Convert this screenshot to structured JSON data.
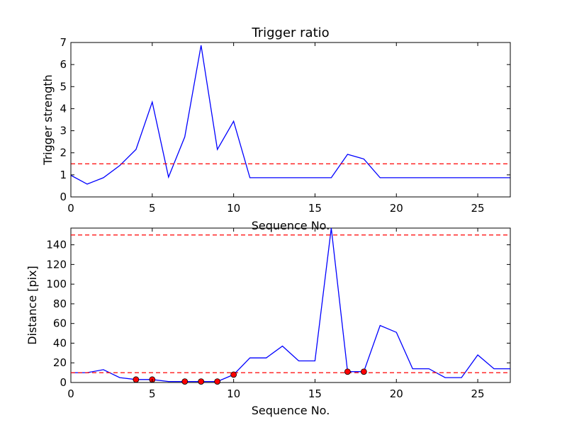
{
  "chart_data": [
    {
      "type": "line",
      "title": "Trigger ratio",
      "xlabel": "Sequence No.",
      "ylabel": "Trigger strength",
      "xlim": [
        0,
        27
      ],
      "ylim": [
        0,
        7
      ],
      "xticks": [
        "0",
        "5",
        "10",
        "15",
        "20",
        "25"
      ],
      "yticks": [
        "0",
        "1",
        "2",
        "3",
        "4",
        "5",
        "6",
        "7"
      ],
      "grid": false,
      "series": [
        {
          "color": "#0000ff",
          "x": [
            0,
            1,
            2,
            3,
            4,
            5,
            6,
            7,
            8,
            9,
            10,
            11,
            12,
            13,
            14,
            15,
            16,
            17,
            18,
            19,
            20,
            21,
            22,
            23,
            24,
            25,
            26,
            27
          ],
          "y": [
            0.98,
            0.58,
            0.87,
            1.42,
            2.15,
            4.3,
            0.9,
            2.72,
            6.87,
            2.15,
            3.43,
            0.87,
            0.87,
            0.87,
            0.87,
            0.87,
            0.87,
            1.93,
            1.72,
            0.87,
            0.87,
            0.87,
            0.87,
            0.87,
            0.87,
            0.87,
            0.87,
            0.87
          ]
        }
      ],
      "thresholds": [
        {
          "y": 1.5,
          "color": "#ff0000",
          "style": "dashed"
        }
      ]
    },
    {
      "type": "line",
      "title": "",
      "xlabel": "Sequence No.",
      "ylabel": "Distance [pix]",
      "xlim": [
        0,
        27
      ],
      "ylim": [
        0,
        157
      ],
      "xticks": [
        "0",
        "5",
        "10",
        "15",
        "20",
        "25"
      ],
      "yticks": [
        "0",
        "20",
        "40",
        "60",
        "80",
        "100",
        "120",
        "140"
      ],
      "grid": false,
      "series": [
        {
          "color": "#0000ff",
          "x": [
            0,
            1,
            2,
            3,
            4,
            5,
            6,
            7,
            8,
            9,
            10,
            11,
            12,
            13,
            14,
            15,
            16,
            17,
            18,
            19,
            20,
            21,
            22,
            23,
            24,
            25,
            26,
            27
          ],
          "y": [
            10,
            10,
            13,
            5,
            3,
            3,
            1,
            1,
            1,
            1,
            8,
            25,
            25,
            37,
            22,
            22,
            157,
            11,
            11,
            58,
            51,
            14,
            14,
            5,
            5,
            28,
            14,
            14
          ]
        }
      ],
      "markers": {
        "color": "#ff0000",
        "points": [
          {
            "x": 4,
            "y": 3
          },
          {
            "x": 5,
            "y": 3
          },
          {
            "x": 7,
            "y": 1
          },
          {
            "x": 8,
            "y": 1
          },
          {
            "x": 9,
            "y": 1
          },
          {
            "x": 10,
            "y": 8
          },
          {
            "x": 17,
            "y": 11
          },
          {
            "x": 18,
            "y": 11
          }
        ]
      },
      "thresholds": [
        {
          "y": 10,
          "color": "#ff0000",
          "style": "dashed"
        },
        {
          "y": 150,
          "color": "#ff0000",
          "style": "dashed"
        }
      ]
    }
  ]
}
